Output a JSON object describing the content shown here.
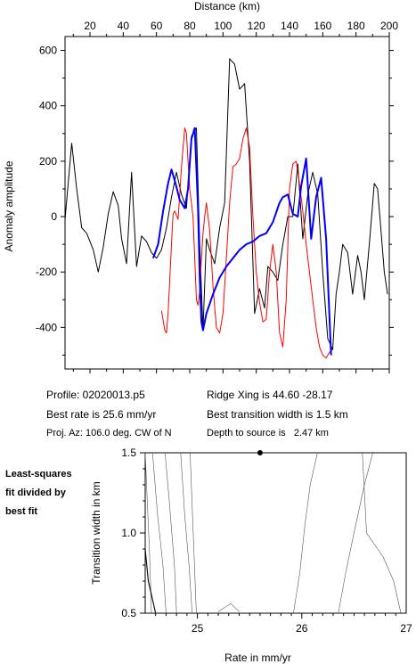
{
  "info": {
    "profile": "Profile: 02020013.p5",
    "best_rate": "Best rate is 25.6 mm/yr",
    "projection": "Proj. Az: 106.0 deg. CW of N",
    "ridge_xing": "Ridge Xing is 44.60 -28.17",
    "best_width": "Best transition width is 1.5 km",
    "depth": "Depth to source is   2.47 km"
  },
  "note": {
    "line1": "Least-squares",
    "line2": "fit divided by",
    "line3": "best fit"
  },
  "chart_data": [
    {
      "type": "line",
      "xlabel": "Distance (km)",
      "ylabel": "Anomaly amplitude",
      "xlim": [
        5,
        200
      ],
      "ylim": [
        -550,
        650
      ],
      "xticks": [
        20,
        40,
        60,
        80,
        100,
        120,
        140,
        160,
        180,
        200
      ],
      "yticks": [
        -400,
        -200,
        0,
        200,
        400,
        600
      ],
      "x_axis_position": "top",
      "grid": false,
      "series": [
        {
          "color": "#000000",
          "x": [
            5,
            9,
            12,
            15,
            18,
            22,
            25,
            28,
            31,
            34,
            37,
            39,
            42,
            45,
            48,
            51,
            54,
            57,
            60,
            63,
            66,
            69,
            72,
            75,
            78,
            81,
            84,
            86,
            88,
            90,
            92,
            95,
            98,
            101,
            104,
            107,
            110,
            113,
            116,
            119,
            122,
            125,
            127,
            130,
            133,
            136,
            139,
            142,
            145,
            148,
            151,
            154,
            157,
            160,
            163,
            166,
            168,
            170,
            172,
            175,
            178,
            181,
            183,
            185,
            188,
            191,
            193,
            195,
            197,
            199
          ],
          "y": [
            -10,
            265,
            100,
            -40,
            -60,
            -120,
            -200,
            -110,
            10,
            90,
            40,
            -80,
            -170,
            160,
            -180,
            -70,
            -90,
            -130,
            -150,
            -120,
            -40,
            70,
            160,
            80,
            30,
            290,
            320,
            -100,
            -410,
            -80,
            -120,
            -170,
            -40,
            50,
            570,
            550,
            460,
            480,
            200,
            -350,
            -260,
            -330,
            -180,
            -200,
            -230,
            -100,
            0,
            0,
            190,
            -80,
            80,
            160,
            80,
            -200,
            -440,
            -480,
            -280,
            -200,
            -100,
            -130,
            -280,
            -140,
            -200,
            -300,
            -100,
            120,
            100,
            -50,
            -200,
            -280
          ]
        },
        {
          "color": "#ff0000",
          "x": [
            63,
            65,
            66,
            67,
            69,
            70,
            71,
            73,
            74,
            75,
            77,
            78,
            79,
            80,
            81,
            82,
            83,
            84,
            85,
            86,
            87,
            88,
            89,
            90,
            92,
            94,
            96,
            98,
            100,
            102,
            104,
            106,
            108,
            110,
            112,
            114,
            116,
            118,
            120,
            122,
            124,
            126,
            128,
            130,
            132,
            134,
            136,
            138,
            140,
            142,
            144,
            146,
            148,
            150,
            152,
            154,
            156,
            158,
            160,
            162,
            164,
            166
          ],
          "y": [
            -340,
            -410,
            -420,
            -350,
            -100,
            10,
            20,
            -10,
            80,
            180,
            320,
            300,
            200,
            100,
            50,
            0,
            -150,
            -300,
            -320,
            -270,
            -150,
            -60,
            0,
            50,
            -50,
            -250,
            -400,
            -420,
            -350,
            -150,
            50,
            180,
            190,
            210,
            280,
            320,
            250,
            0,
            -200,
            -310,
            -380,
            -370,
            -200,
            -100,
            -200,
            -420,
            -470,
            -300,
            100,
            190,
            200,
            120,
            20,
            -100,
            -200,
            -300,
            -400,
            -470,
            -500,
            -510,
            -490,
            -480
          ]
        },
        {
          "color": "#0000ff",
          "x": [
            58,
            61,
            64,
            67,
            69,
            71,
            74,
            77,
            79,
            81,
            83,
            85,
            86,
            87,
            88,
            90,
            94,
            98,
            102,
            106,
            110,
            114,
            118,
            122,
            126,
            130,
            134,
            136,
            139,
            142,
            145,
            147,
            150,
            153,
            156,
            159,
            162,
            165
          ],
          "y": [
            -150,
            -100,
            20,
            120,
            170,
            130,
            60,
            30,
            100,
            280,
            320,
            30,
            -220,
            -380,
            -410,
            -350,
            -280,
            -220,
            -180,
            -150,
            -120,
            -100,
            -90,
            -70,
            -60,
            -20,
            50,
            70,
            80,
            10,
            0,
            110,
            210,
            -80,
            70,
            140,
            -80,
            -500
          ]
        }
      ]
    },
    {
      "type": "contour",
      "xlabel": "Rate in mm/yr",
      "ylabel": "Transition width in km",
      "xlim": [
        24.5,
        27
      ],
      "ylim": [
        0.5,
        1.5
      ],
      "xticks": [
        25,
        26,
        27
      ],
      "yticks": [
        0.5,
        1.0,
        1.5
      ],
      "grid": false,
      "best_fit_marker": {
        "x": 25.6,
        "y": 1.5
      },
      "contours": [
        {
          "x": [
            24.5,
            24.52,
            24.54,
            24.55,
            24.56
          ],
          "y": [
            1.5,
            1.2,
            0.9,
            0.7,
            0.5
          ]
        },
        {
          "x": [
            24.57,
            24.62,
            24.67,
            24.7
          ],
          "y": [
            1.5,
            1.1,
            0.8,
            0.5
          ]
        },
        {
          "x": [
            24.69,
            24.73,
            24.78,
            24.8
          ],
          "y": [
            1.5,
            1.2,
            0.8,
            0.5
          ]
        },
        {
          "x": [
            24.84,
            24.88,
            24.92,
            24.95
          ],
          "y": [
            1.5,
            1.1,
            0.8,
            0.5
          ]
        },
        {
          "x": [
            24.93,
            24.96,
            24.99
          ],
          "y": [
            1.5,
            1.0,
            0.5
          ]
        },
        {
          "x": [
            25.2,
            25.32,
            25.4
          ],
          "y": [
            0.51,
            0.56,
            0.51
          ]
        },
        {
          "x": [
            26.15,
            26.08,
            26.03,
            25.98,
            25.92
          ],
          "y": [
            1.5,
            1.3,
            1.05,
            0.75,
            0.5
          ]
        },
        {
          "x": [
            26.68,
            26.6,
            26.5,
            26.42,
            26.35
          ],
          "y": [
            1.5,
            1.3,
            1.0,
            0.75,
            0.5
          ]
        },
        {
          "x": [
            26.58,
            26.62,
            26.78,
            26.88,
            26.95
          ],
          "y": [
            1.5,
            1.0,
            0.85,
            0.7,
            0.5
          ]
        },
        {
          "x": [
            24.5,
            24.53,
            24.6
          ],
          "y": [
            0.9,
            0.7,
            0.5
          ]
        }
      ]
    }
  ]
}
